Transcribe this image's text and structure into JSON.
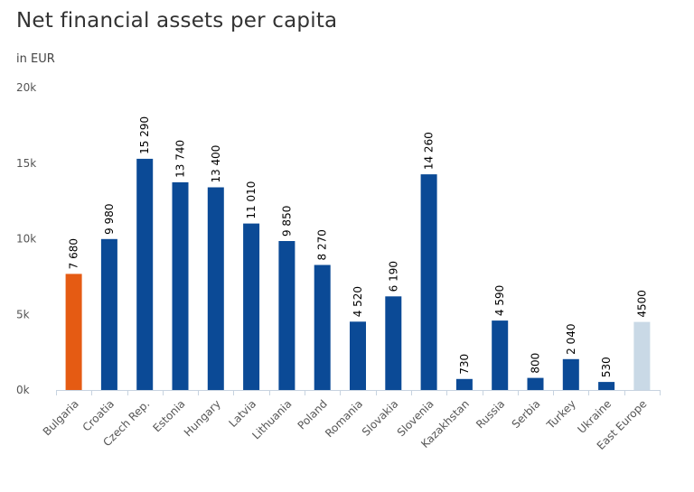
{
  "chart_data": {
    "type": "bar",
    "title": "Net financial assets per capita",
    "subtitle": "in EUR",
    "xlabel": "",
    "ylabel": "",
    "ylim": [
      0,
      20000
    ],
    "yticks": [
      0,
      5000,
      10000,
      15000,
      20000
    ],
    "ytick_labels": [
      "0k",
      "5k",
      "10k",
      "15k",
      "20k"
    ],
    "categories": [
      "Bulgaria",
      "Croatia",
      "Czech Rep.",
      "Estonia",
      "Hungary",
      "Latvia",
      "Lithuania",
      "Poland",
      "Romania",
      "Slovakia",
      "Slovenia",
      "Kazakhstan",
      "Russia",
      "Serbia",
      "Turkey",
      "Ukraine",
      "East Europe"
    ],
    "values": [
      7680,
      9980,
      15290,
      13740,
      13400,
      11010,
      9850,
      8270,
      4520,
      6190,
      14260,
      730,
      4590,
      800,
      2040,
      530,
      4500
    ],
    "data_labels": [
      "7 680",
      "9 980",
      "15 290",
      "13 740",
      "13 400",
      "11 010",
      "9 850",
      "8 270",
      "4 520",
      "6 190",
      "14 260",
      "730",
      "4 590",
      "800",
      "2 040",
      "530",
      "4500"
    ],
    "colors": [
      "#e55b13",
      "#0b4a96",
      "#0b4a96",
      "#0b4a96",
      "#0b4a96",
      "#0b4a96",
      "#0b4a96",
      "#0b4a96",
      "#0b4a96",
      "#0b4a96",
      "#0b4a96",
      "#0b4a96",
      "#0b4a96",
      "#0b4a96",
      "#0b4a96",
      "#0b4a96",
      "#c9d9e6"
    ],
    "grid": false,
    "legend": "none"
  }
}
